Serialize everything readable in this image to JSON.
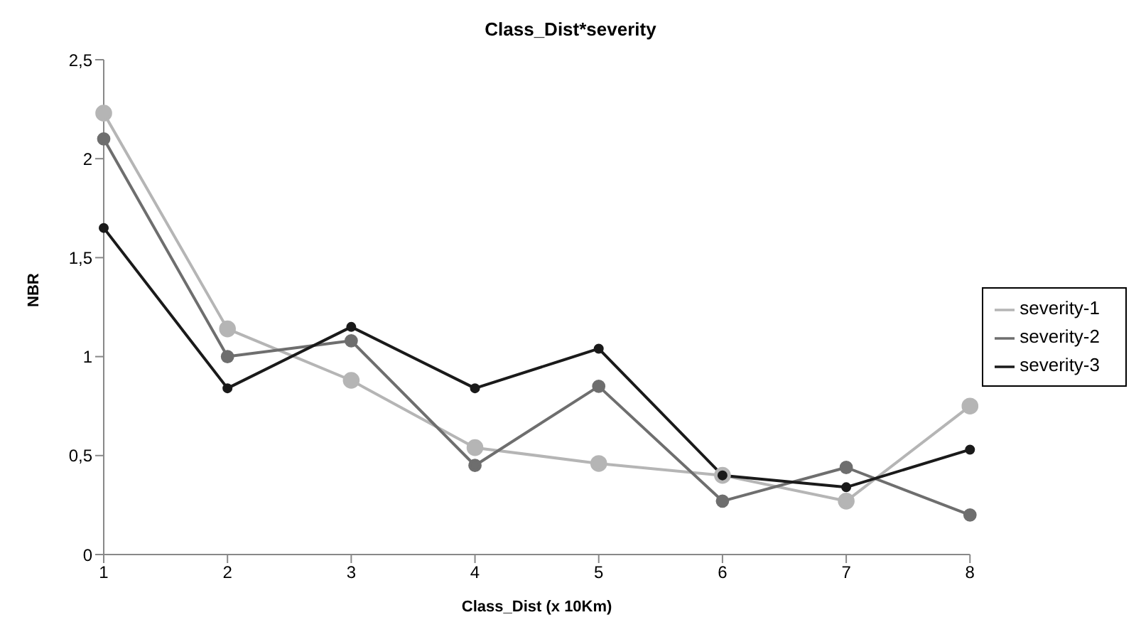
{
  "chart_data": {
    "type": "line",
    "title": "Class_Dist*severity",
    "xlabel": "Class_Dist (x 10Km)",
    "ylabel": "NBR",
    "categories": [
      "1",
      "2",
      "3",
      "4",
      "5",
      "6",
      "7",
      "8"
    ],
    "series": [
      {
        "name": "severity-1",
        "color": "#b5b5b5",
        "values": [
          2.23,
          1.14,
          0.88,
          0.54,
          0.46,
          0.4,
          0.27,
          0.75
        ]
      },
      {
        "name": "severity-2",
        "color": "#6e6e6e",
        "values": [
          2.1,
          1.0,
          1.08,
          0.45,
          0.85,
          0.27,
          0.44,
          0.2
        ]
      },
      {
        "name": "severity-3",
        "color": "#1a1a1a",
        "values": [
          1.65,
          0.84,
          1.15,
          0.84,
          1.04,
          0.4,
          0.34,
          0.53
        ]
      }
    ],
    "ylim": [
      0,
      2.5
    ],
    "yticks": [
      0,
      {
        "value": 0.5,
        "label": "0,5"
      },
      1,
      {
        "value": 1.5,
        "label": "1,5"
      },
      2,
      {
        "value": 2.5,
        "label": "2,5"
      }
    ],
    "grid": false,
    "legend": "right",
    "marker": "circle",
    "line_style": "solid"
  }
}
